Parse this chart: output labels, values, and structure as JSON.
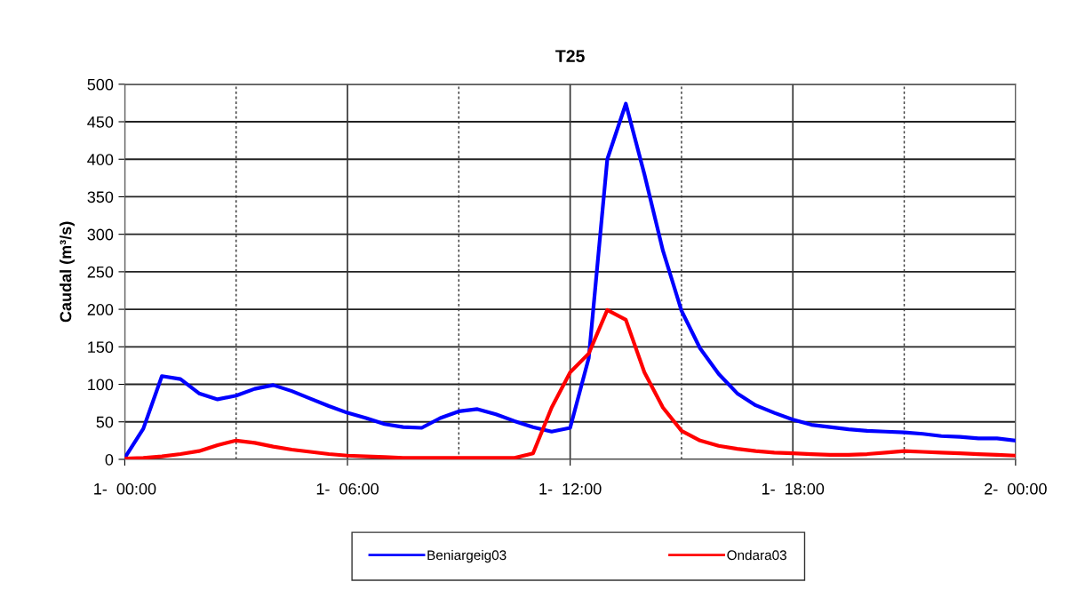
{
  "chart_data": {
    "type": "line",
    "title": "T25",
    "ylabel": "Caudal (m³/s)",
    "categories": [
      "1-  00:00",
      null,
      null,
      null,
      null,
      null,
      null,
      null,
      null,
      null,
      null,
      null,
      "1-  06:00",
      null,
      null,
      null,
      null,
      null,
      null,
      null,
      null,
      null,
      null,
      null,
      "1-  12:00",
      null,
      null,
      null,
      null,
      null,
      null,
      null,
      null,
      null,
      null,
      null,
      "1-  18:00",
      null,
      null,
      null,
      null,
      null,
      null,
      null,
      null,
      null,
      null,
      null,
      "2-  00:00"
    ],
    "ylim": [
      0,
      500
    ],
    "yticks": [
      0,
      50,
      100,
      150,
      200,
      250,
      300,
      350,
      400,
      450,
      500
    ],
    "grid": true,
    "legend": "bottom",
    "marker": "none",
    "line_style": "solid",
    "series": [
      {
        "name": "Beniargeig03",
        "color": "#0000ff",
        "values": [
          2,
          41,
          111,
          107,
          88,
          80,
          85,
          94,
          99,
          91,
          81,
          71,
          62,
          55,
          47,
          43,
          42,
          55,
          64,
          67,
          60,
          51,
          43,
          37,
          42,
          135,
          400,
          474,
          380,
          278,
          198,
          148,
          114,
          88,
          72,
          62,
          53,
          46,
          43,
          40,
          38,
          37,
          36,
          34,
          31,
          30,
          28,
          28,
          25
        ]
      },
      {
        "name": "Ondara03",
        "color": "#ff0000",
        "values": [
          1,
          2,
          4,
          7,
          11,
          19,
          25,
          22,
          17,
          13,
          10,
          7,
          5,
          4,
          3,
          2,
          2,
          2,
          2,
          2,
          2,
          2,
          8,
          69,
          116,
          141,
          199,
          186,
          116,
          69,
          38,
          25,
          18,
          14,
          11,
          9,
          8,
          7,
          6,
          6,
          7,
          9,
          11,
          10,
          9,
          8,
          7,
          6,
          5
        ]
      }
    ]
  }
}
